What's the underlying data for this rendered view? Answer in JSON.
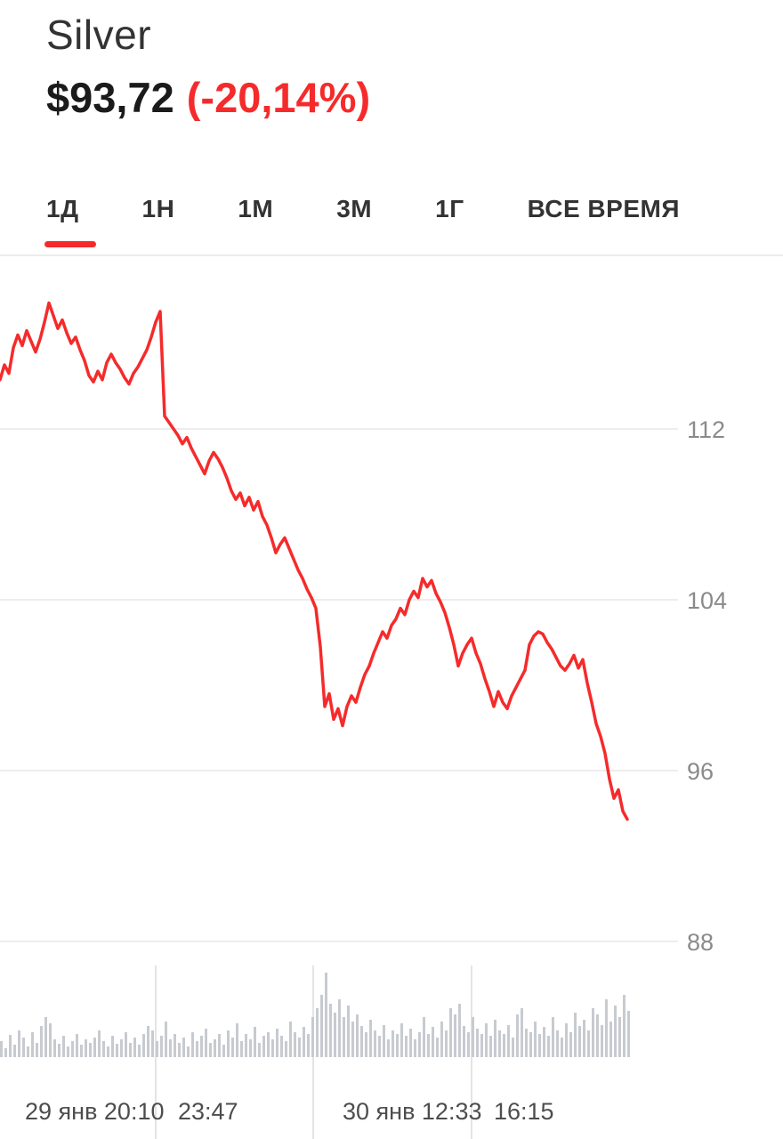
{
  "header": {
    "title": "Silver",
    "price": "$93,72",
    "change": "(-20,14%)"
  },
  "tabs": [
    {
      "id": "1d",
      "label": "1Д",
      "selected": true
    },
    {
      "id": "1w",
      "label": "1Н",
      "selected": false
    },
    {
      "id": "1m",
      "label": "1М",
      "selected": false
    },
    {
      "id": "3m",
      "label": "3М",
      "selected": false
    },
    {
      "id": "1y",
      "label": "1Г",
      "selected": false
    },
    {
      "id": "all",
      "label": "ВСЕ ВРЕМЯ",
      "selected": false
    }
  ],
  "colors": {
    "accent_red": "#f52b2b",
    "line_red": "#f52b2b",
    "volume_gray": "#c7cbd0",
    "h_grid_gray": "#ededed",
    "v_grid_gray": "#e4e4e4",
    "y_label_gray": "#8a8a8a",
    "x_label_gray": "#4d4d4d",
    "title_dark": "#333333",
    "price_black": "#1b1b1b"
  },
  "chart_data": {
    "type": "line",
    "title": "Silver",
    "current_value": 93.72,
    "change_percent": -20.14,
    "selected_range": "1Д",
    "legend": "none",
    "grid": "horizontal",
    "y_axis": {
      "side": "right",
      "ticks": [
        112,
        104,
        96,
        88
      ],
      "visible_range": [
        93,
        118.5
      ]
    },
    "x_axis": {
      "ticks": [
        "29 янв 20:10",
        "23:47",
        "30 янв 12:33",
        "16:15"
      ]
    },
    "prices": [
      114.3,
      115.0,
      114.6,
      115.8,
      116.4,
      115.9,
      116.6,
      116.1,
      115.6,
      116.2,
      117.0,
      117.9,
      117.3,
      116.7,
      117.1,
      116.5,
      116.0,
      116.3,
      115.7,
      115.2,
      114.5,
      114.2,
      114.7,
      114.3,
      115.1,
      115.5,
      115.1,
      114.8,
      114.4,
      114.1,
      114.6,
      114.9,
      115.3,
      115.7,
      116.3,
      117.0,
      117.5,
      112.6,
      112.3,
      112.0,
      111.7,
      111.3,
      111.6,
      111.1,
      110.7,
      110.3,
      109.9,
      110.5,
      110.9,
      110.6,
      110.2,
      109.7,
      109.1,
      108.7,
      109.0,
      108.4,
      108.8,
      108.2,
      108.6,
      107.9,
      107.5,
      106.9,
      106.2,
      106.6,
      106.9,
      106.4,
      105.9,
      105.4,
      105.0,
      104.5,
      104.1,
      103.6,
      101.8,
      99.0,
      99.6,
      98.4,
      98.9,
      98.1,
      99.0,
      99.5,
      99.2,
      99.9,
      100.5,
      100.9,
      101.5,
      102.0,
      102.5,
      102.2,
      102.8,
      103.1,
      103.6,
      103.3,
      104.0,
      104.4,
      104.1,
      105.0,
      104.6,
      104.9,
      104.3,
      103.9,
      103.4,
      102.7,
      101.9,
      100.9,
      101.5,
      101.9,
      102.2,
      101.5,
      101.0,
      100.3,
      99.7,
      99.0,
      99.7,
      99.2,
      98.9,
      99.5,
      99.9,
      100.3,
      100.7,
      101.9,
      102.3,
      102.5,
      102.4,
      102.0,
      101.7,
      101.3,
      100.9,
      100.7,
      101.0,
      101.4,
      100.8,
      101.2,
      100.1,
      99.2,
      98.2,
      97.6,
      96.8,
      95.6,
      94.7,
      95.1,
      94.1,
      93.72
    ],
    "volumes_relative": [
      18,
      10,
      25,
      14,
      30,
      22,
      12,
      28,
      16,
      35,
      45,
      38,
      20,
      15,
      24,
      12,
      18,
      26,
      14,
      20,
      16,
      22,
      30,
      18,
      12,
      24,
      15,
      20,
      28,
      16,
      22,
      14,
      26,
      35,
      30,
      18,
      24,
      40,
      20,
      26,
      16,
      22,
      12,
      28,
      18,
      24,
      32,
      16,
      20,
      26,
      14,
      30,
      22,
      38,
      18,
      26,
      20,
      34,
      16,
      24,
      28,
      20,
      32,
      24,
      18,
      40,
      28,
      22,
      34,
      26,
      45,
      55,
      70,
      95,
      60,
      50,
      65,
      45,
      58,
      40,
      48,
      35,
      28,
      42,
      30,
      24,
      36,
      20,
      30,
      26,
      38,
      24,
      32,
      20,
      28,
      45,
      26,
      34,
      22,
      40,
      30,
      55,
      48,
      60,
      35,
      28,
      45,
      32,
      26,
      38,
      24,
      42,
      30,
      26,
      36,
      22,
      48,
      55,
      32,
      28,
      40,
      26,
      34,
      24,
      45,
      30,
      22,
      38,
      28,
      50,
      35,
      42,
      30,
      55,
      48,
      36,
      65,
      40,
      58,
      45,
      70,
      52
    ]
  }
}
